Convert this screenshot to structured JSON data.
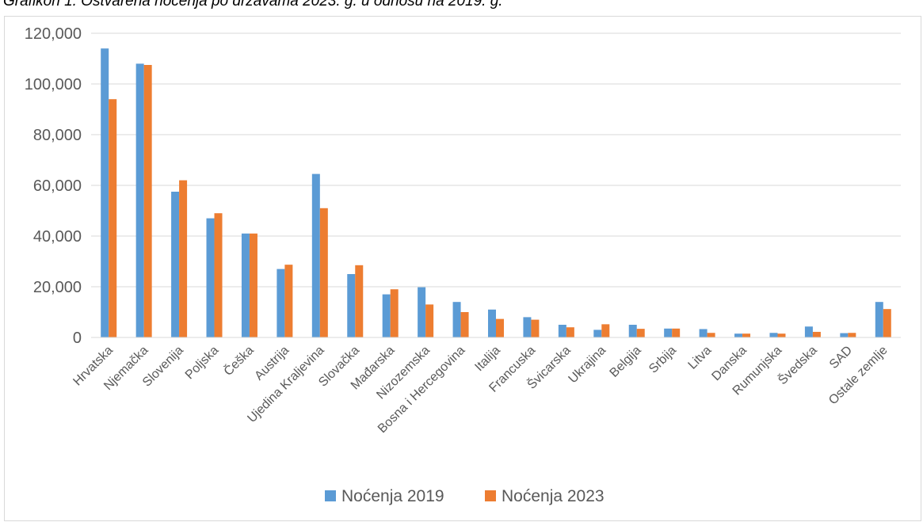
{
  "caption": "Grafikon 1. Ostvarena noćenja po državama 2023. g. u odnosu na 2019. g.",
  "colors": {
    "series_2019": "#5b9bd5",
    "series_2023": "#ed7d31",
    "grid": "#d9d9d9",
    "text": "#595959"
  },
  "chart_data": {
    "type": "bar",
    "title": "Grafikon 1. Ostvarena noćenja po državama 2023. g. u odnosu na 2019. g.",
    "categories": [
      "Hrvatska",
      "Njemačka",
      "Slovenija",
      "Poljska",
      "Češka",
      "Austrija",
      "Ujedina Kraljevina",
      "Slovačka",
      "Mađarska",
      "Nizozemska",
      "Bosna i Hercegovina",
      "Italija",
      "Francuska",
      "Švicarska",
      "Ukrajina",
      "Belgija",
      "Srbija",
      "Litva",
      "Danska",
      "Rumunjska",
      "Švedska",
      "SAD",
      "Ostale zemlje"
    ],
    "series": [
      {
        "name": "Noćenja 2019",
        "values": [
          114000,
          108000,
          57500,
          47000,
          41000,
          27000,
          64500,
          25000,
          17000,
          19800,
          14000,
          11000,
          8000,
          5000,
          3000,
          5000,
          3500,
          3300,
          1500,
          1800,
          4300,
          1700,
          14000
        ]
      },
      {
        "name": "Noćenja 2023",
        "values": [
          94000,
          107500,
          62000,
          49000,
          41000,
          28700,
          51000,
          28500,
          19000,
          13000,
          10000,
          7300,
          7000,
          4000,
          5200,
          3400,
          3500,
          1800,
          1500,
          1500,
          2200,
          1800,
          11200
        ]
      }
    ],
    "yticks": [
      "0",
      "20,000",
      "40,000",
      "60,000",
      "80,000",
      "100,000",
      "120,000"
    ],
    "ylim": [
      0,
      120000
    ],
    "grid": true,
    "legend_position": "bottom"
  }
}
